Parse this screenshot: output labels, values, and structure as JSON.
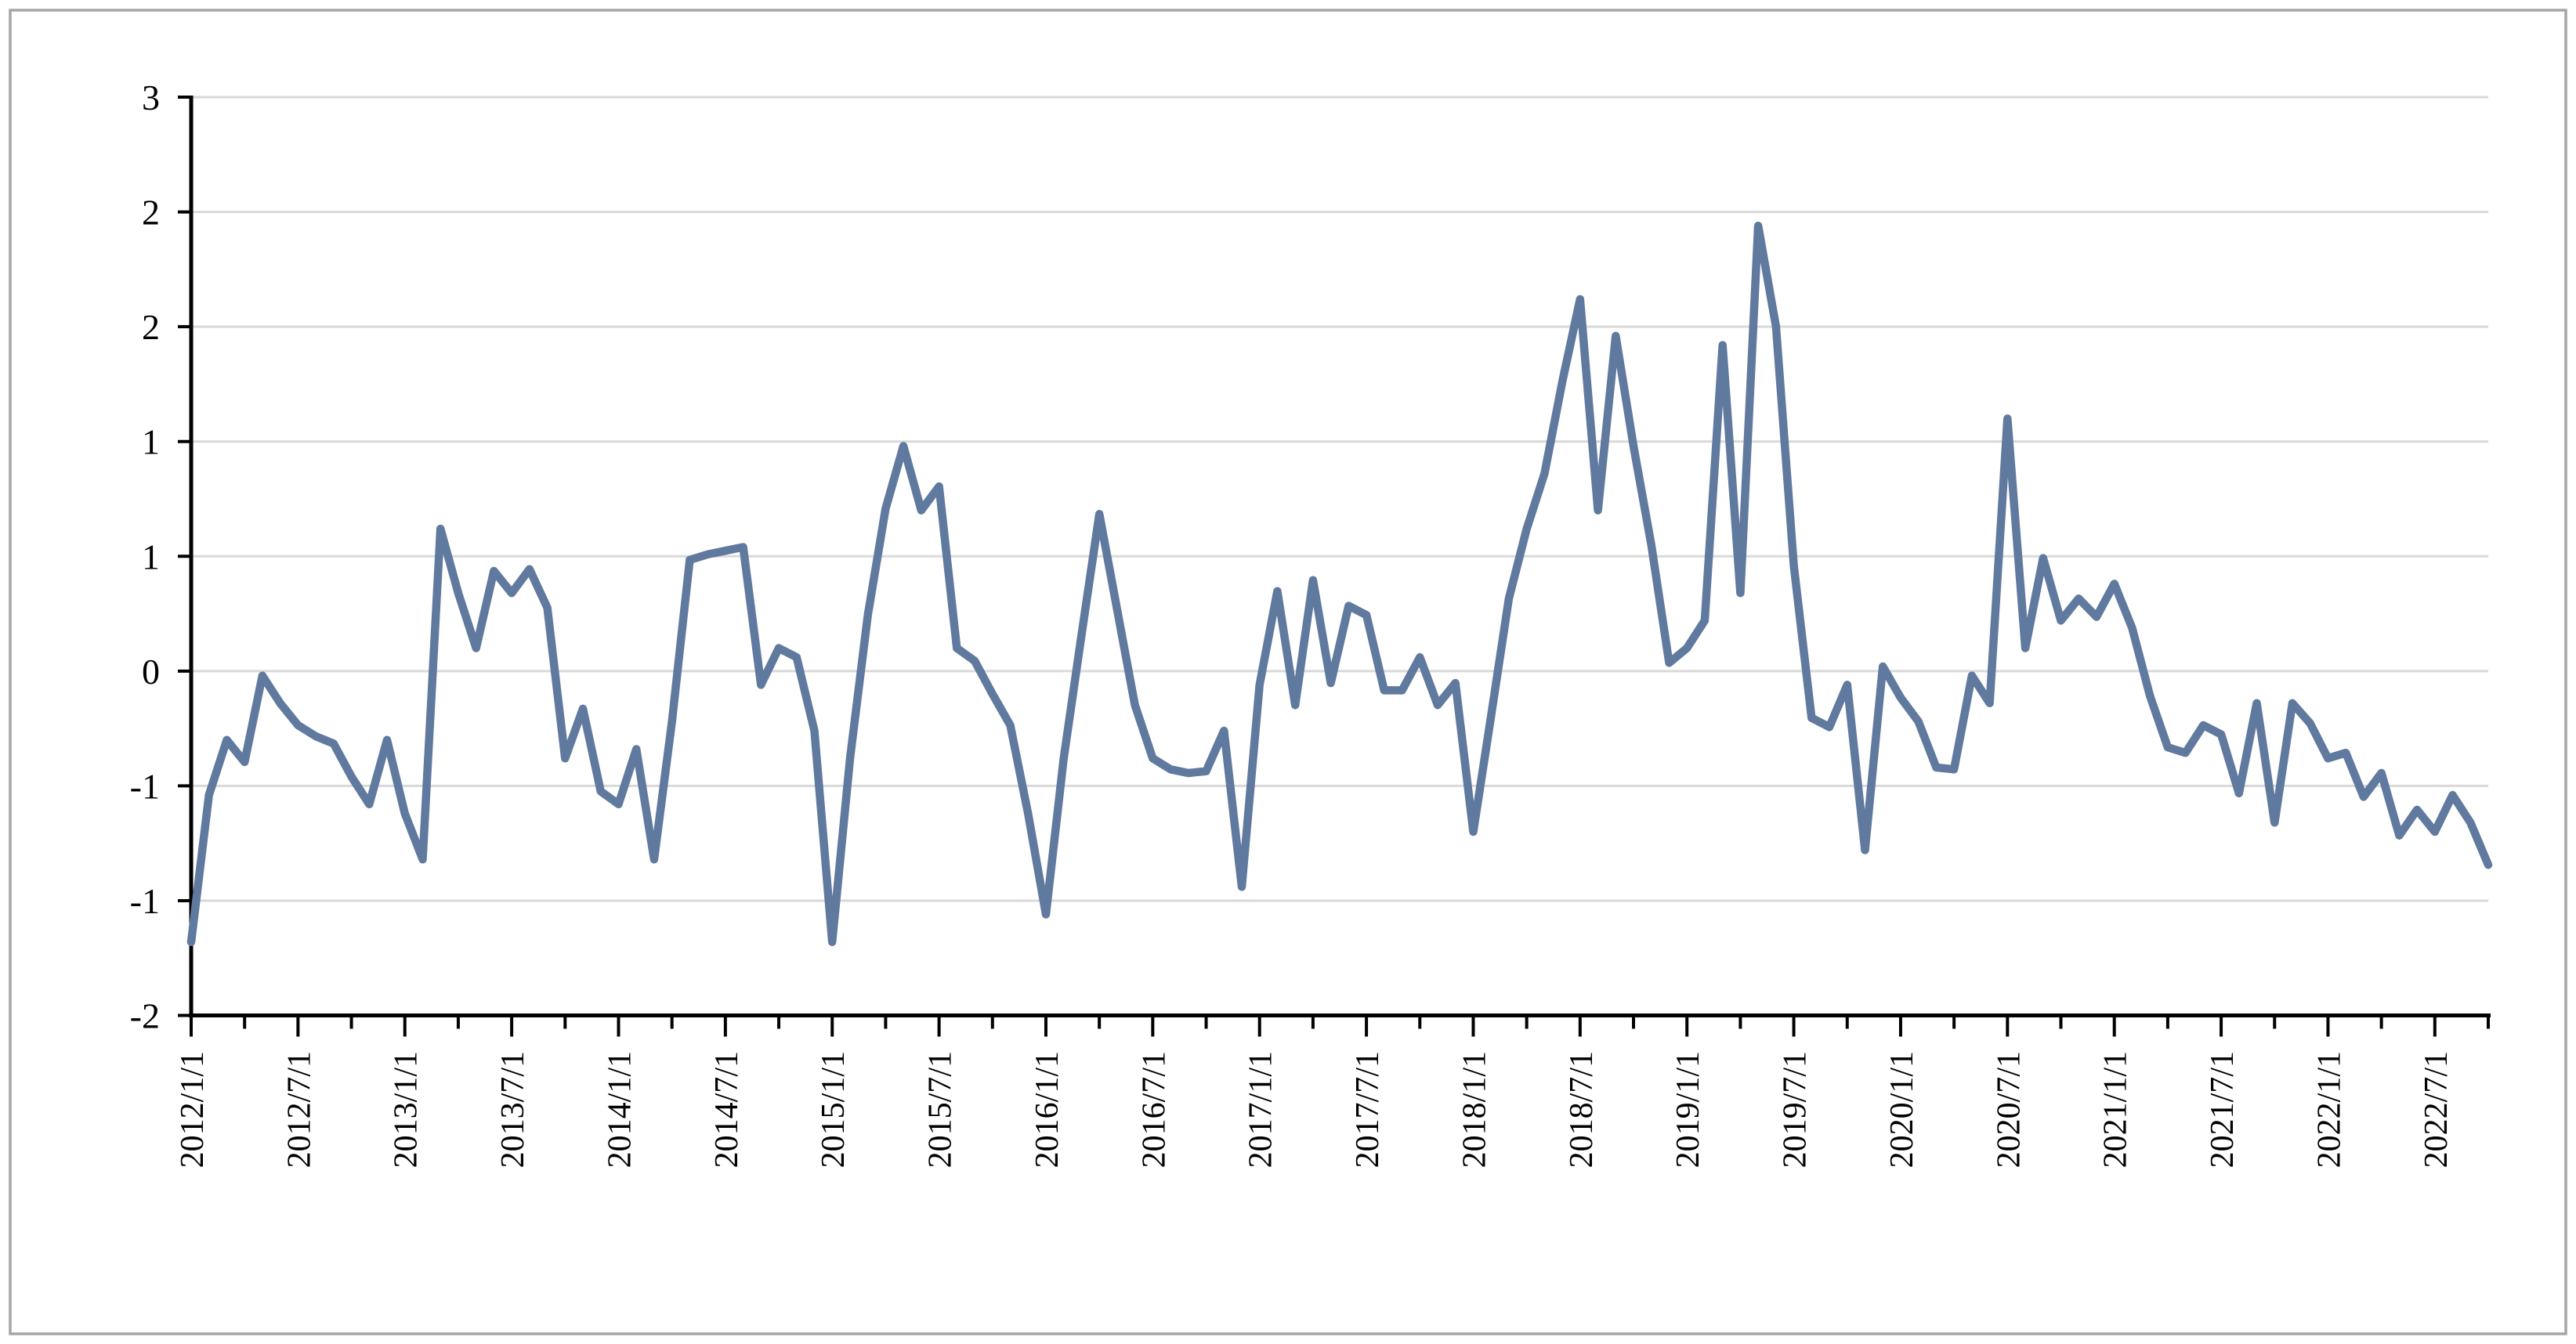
{
  "chart_data": {
    "type": "line",
    "title": "",
    "x_start": "2012/1",
    "x_freq": "monthly",
    "n_points": 130,
    "values": [
      -1.6,
      -0.8,
      -0.5,
      -0.62,
      -0.15,
      -0.3,
      -0.42,
      -0.48,
      -0.52,
      -0.7,
      -0.85,
      -0.5,
      -0.9,
      -1.15,
      0.65,
      0.3,
      0.0,
      0.42,
      0.3,
      0.43,
      0.22,
      -0.6,
      -0.33,
      -0.78,
      -0.85,
      -0.55,
      -1.15,
      -0.4,
      0.48,
      0.51,
      0.53,
      0.55,
      -0.2,
      0.0,
      -0.05,
      -0.45,
      -1.6,
      -0.6,
      0.18,
      0.76,
      1.1,
      0.75,
      0.88,
      0.0,
      -0.07,
      -0.25,
      -0.42,
      -0.9,
      -1.45,
      -0.6,
      0.07,
      0.73,
      0.21,
      -0.31,
      -0.6,
      -0.66,
      -0.68,
      -0.67,
      -0.45,
      -1.3,
      -0.2,
      0.31,
      -0.31,
      0.37,
      -0.19,
      0.23,
      0.18,
      -0.23,
      -0.23,
      -0.05,
      -0.31,
      -0.19,
      -1.0,
      -0.37,
      0.27,
      0.65,
      0.95,
      1.45,
      1.9,
      0.75,
      1.7,
      1.1,
      0.56,
      -0.08,
      0.0,
      0.15,
      1.65,
      0.3,
      2.3,
      1.75,
      0.45,
      -0.38,
      -0.43,
      -0.2,
      -1.1,
      -0.1,
      -0.27,
      -0.4,
      -0.65,
      -0.66,
      -0.15,
      -0.3,
      1.25,
      0.0,
      0.49,
      0.15,
      0.27,
      0.17,
      0.35,
      0.11,
      -0.26,
      -0.54,
      -0.57,
      -0.42,
      -0.47,
      -0.79,
      -0.3,
      -0.95,
      -0.3,
      -0.41,
      -0.6,
      -0.57,
      -0.81,
      -0.68,
      -1.02,
      -0.88,
      -1.0,
      -0.8,
      -0.95,
      -1.18
    ],
    "ylim": [
      -2,
      3
    ],
    "y_major_unit": 0.625,
    "y_tick_labels": [
      "3",
      "2",
      "2",
      "1",
      "1",
      "0",
      "-1",
      "-1",
      "-2"
    ],
    "x_tick_labels": [
      "2012/1/1",
      "2012/7/1",
      "2013/1/1",
      "2013/7/1",
      "2014/1/1",
      "2014/7/1",
      "2015/1/1",
      "2015/7/1",
      "2016/1/1",
      "2016/7/1",
      "2017/1/1",
      "2017/7/1",
      "2018/1/1",
      "2018/7/1",
      "2019/1/1",
      "2019/7/1",
      "2020/1/1",
      "2020/7/1",
      "2021/1/1",
      "2021/7/1",
      "2022/1/1",
      "2022/7/1"
    ],
    "x_label_interval_months": 6,
    "x_minor_tick_interval_months": 3,
    "grid": true,
    "legend": false,
    "xlabel": "",
    "ylabel": "",
    "colors": {
      "series": "#60799E",
      "gridline": "#D9D9D9",
      "axis": "#000000",
      "border": "#A6A6A6",
      "background": "#FFFFFF",
      "text": "#000000"
    }
  }
}
